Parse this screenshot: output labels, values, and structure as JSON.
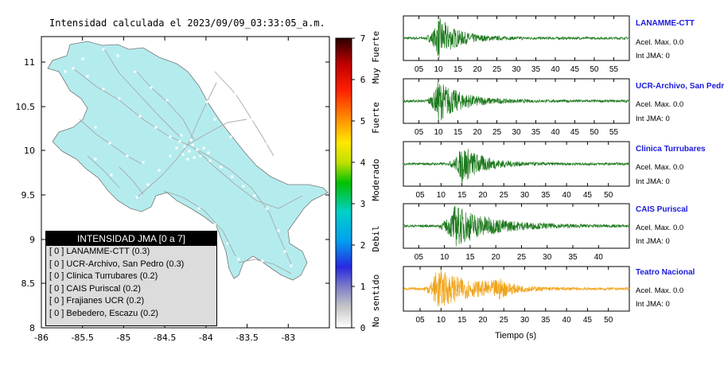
{
  "map": {
    "title": "Intensidad calculada el 2023/09/09_03:33:05_a.m.",
    "lon_ticks": [
      "-86",
      "-85.5",
      "-85",
      "-84.5",
      "-84",
      "-83.5",
      "-83"
    ],
    "lat_ticks": [
      "11",
      "10.5",
      "10",
      "9.5",
      "9",
      "8.5",
      "8"
    ],
    "land_color": "#b4ecee",
    "colors": {
      "road": "#a8a8a8",
      "station": "#ffffff"
    }
  },
  "colorbar": {
    "tick_labels": [
      "0",
      "1",
      "2",
      "3",
      "4",
      "5",
      "6",
      "7"
    ],
    "category_labels": [
      "No sentido",
      "Debil",
      "Moderado",
      "Fuerte",
      "Muy Fuerte"
    ]
  },
  "legend": {
    "title": "INTENSIDAD JMA [0 a 7]",
    "items": [
      {
        "level": "[ 0 ]",
        "text": "LANAMME-CTT (0.3)"
      },
      {
        "level": "[ 0 ]",
        "text": "UCR-Archivo, San Pedro (0.3)"
      },
      {
        "level": "[ 0 ]",
        "text": "Clinica Turrubares (0.2)"
      },
      {
        "level": "[ 0 ]",
        "text": "CAIS Puriscal (0.2)"
      },
      {
        "level": "[ 0 ]",
        "text": "Frajianes UCR (0.2)"
      },
      {
        "level": "[ 0 ]",
        "text": "Bebedero, Escazu (0.2)"
      }
    ]
  },
  "chart_data": [
    {
      "type": "line",
      "name": "LANAMME-CTT",
      "color": "#1e7a1e",
      "x_ticks": [
        "05",
        "10",
        "15",
        "20",
        "25",
        "30",
        "35",
        "40",
        "45",
        "50",
        "55"
      ],
      "xlim": [
        1,
        59
      ],
      "accel_label": "Acel. Max. 0.0",
      "jma_label": "Int JMA: 0"
    },
    {
      "type": "line",
      "name": "UCR-Archivo, San Pedro",
      "color": "#1e7a1e",
      "x_ticks": [
        "05",
        "10",
        "15",
        "20",
        "25",
        "30",
        "35",
        "40",
        "45",
        "50",
        "55"
      ],
      "xlim": [
        1,
        59
      ],
      "accel_label": "Acel. Max. 0.0",
      "jma_label": "Int JMA: 0"
    },
    {
      "type": "line",
      "name": "Clinica Turrubares",
      "color": "#1e7a1e",
      "x_ticks": [
        "05",
        "10",
        "15",
        "20",
        "25",
        "30",
        "35",
        "40",
        "45",
        "50"
      ],
      "xlim": [
        1,
        55
      ],
      "accel_label": "Acel. Max. 0.0",
      "jma_label": "Int JMA: 0"
    },
    {
      "type": "line",
      "name": "CAIS Puriscal",
      "color": "#1e7a1e",
      "x_ticks": [
        "05",
        "10",
        "15",
        "20",
        "25",
        "30",
        "35",
        "40"
      ],
      "xlim": [
        2,
        46
      ],
      "accel_label": "Acel. Max. 0.0",
      "jma_label": "Int JMA: 0"
    },
    {
      "type": "line",
      "name": "Teatro Nacional",
      "color": "#f0a41a",
      "x_ticks": [
        "05",
        "10",
        "15",
        "20",
        "25",
        "30",
        "35",
        "40",
        "45",
        "50"
      ],
      "xlim": [
        1,
        55
      ],
      "accel_label": "Acel. Max. 0.0",
      "jma_label": "Int JMA: 0",
      "xlabel": "Tiempo (s)"
    }
  ]
}
